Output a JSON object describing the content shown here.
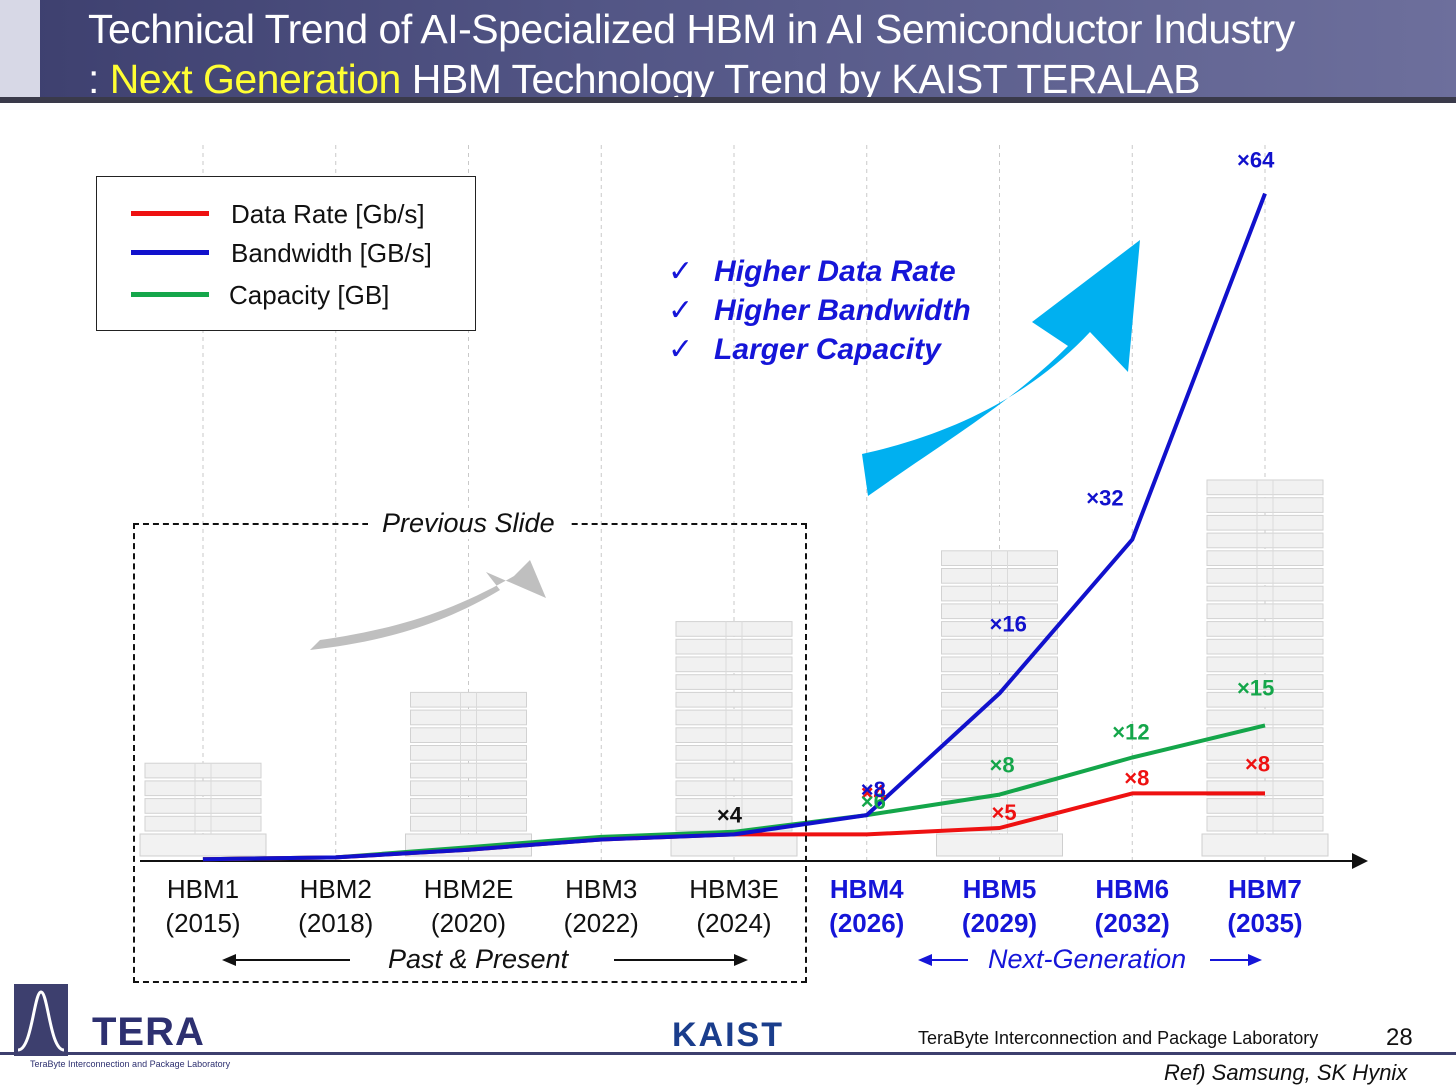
{
  "header": {
    "title_line1": "Technical Trend of AI-Specialized HBM in AI Semiconductor Industry",
    "title_line2_prefix": ": ",
    "title_line2_highlight": "Next Generation",
    "title_line2_rest": " HBM Technology Trend by KAIST TERALAB",
    "highlight_color": "#ffff33"
  },
  "legend": {
    "items": [
      {
        "label": "Data Rate [Gb/s]",
        "color": "#ee1111"
      },
      {
        "label": "Bandwidth [GB/s]",
        "color": "#1111cc"
      },
      {
        "label": "Capacity [GB]",
        "color": "#14a64a"
      }
    ]
  },
  "checklist": {
    "mark": "✓",
    "items": [
      "Higher Data Rate",
      "Higher Bandwidth",
      "Larger Capacity"
    ]
  },
  "regions": {
    "previous_slide": "Previous Slide",
    "past_present": "Past & Present",
    "next_generation": "Next-Generation"
  },
  "chart_data": {
    "type": "line",
    "categories": [
      "HBM1",
      "HBM2",
      "HBM2E",
      "HBM3",
      "HBM3E",
      "HBM4",
      "HBM5",
      "HBM6",
      "HBM7"
    ],
    "years": [
      "(2015)",
      "(2018)",
      "(2020)",
      "(2022)",
      "(2024)",
      "(2026)",
      "(2029)",
      "(2032)",
      "(2035)"
    ],
    "next_generation_start_index": 5,
    "series": [
      {
        "name": "Data Rate [Gb/s]",
        "color": "#ee1111",
        "values": [
          0.03,
          0.1,
          0.4,
          0.8,
          1,
          1,
          1.25,
          2.6,
          2.6
        ]
      },
      {
        "name": "Bandwidth [GB/s]",
        "color": "#1111cc",
        "values": [
          0.03,
          0.1,
          0.4,
          0.8,
          1,
          1.75,
          6.5,
          12.5,
          26
        ]
      },
      {
        "name": "Capacity [GB]",
        "color": "#14a64a",
        "values": [
          0.03,
          0.1,
          0.5,
          0.9,
          1.1,
          1.75,
          2.55,
          4,
          5.25
        ]
      }
    ],
    "annotations": [
      {
        "text": "×4",
        "category": "HBM3E",
        "color": "#111111"
      },
      {
        "text": "×4",
        "category": "HBM4",
        "color": "#ee1111"
      },
      {
        "text": "×6",
        "category": "HBM4",
        "color": "#14a64a"
      },
      {
        "text": "×8",
        "category": "HBM4",
        "color": "#1111cc"
      },
      {
        "text": "×5",
        "category": "HBM5",
        "color": "#ee1111"
      },
      {
        "text": "×8",
        "category": "HBM5",
        "color": "#14a64a"
      },
      {
        "text": "×16",
        "category": "HBM5",
        "color": "#1111cc"
      },
      {
        "text": "×8",
        "category": "HBM6",
        "color": "#ee1111"
      },
      {
        "text": "×12",
        "category": "HBM6",
        "color": "#14a64a"
      },
      {
        "text": "×32",
        "category": "HBM6",
        "color": "#1111cc"
      },
      {
        "text": "×8",
        "category": "HBM7",
        "color": "#ee1111"
      },
      {
        "text": "×15",
        "category": "HBM7",
        "color": "#14a64a"
      },
      {
        "text": "×64",
        "category": "HBM7",
        "color": "#1111cc"
      }
    ],
    "stack_layers": [
      4,
      0,
      8,
      0,
      12,
      0,
      16,
      0,
      20
    ],
    "ylim": [
      0,
      27
    ]
  },
  "footer": {
    "lab_logo": "TERA",
    "lab_logo_sub": "TeraByte Interconnection and Package Laboratory",
    "kaist_logo": "KAIST",
    "lab_name": "TeraByte Interconnection and Package Laboratory",
    "page_number": "28",
    "reference": "Ref) Samsung, SK Hynix"
  }
}
